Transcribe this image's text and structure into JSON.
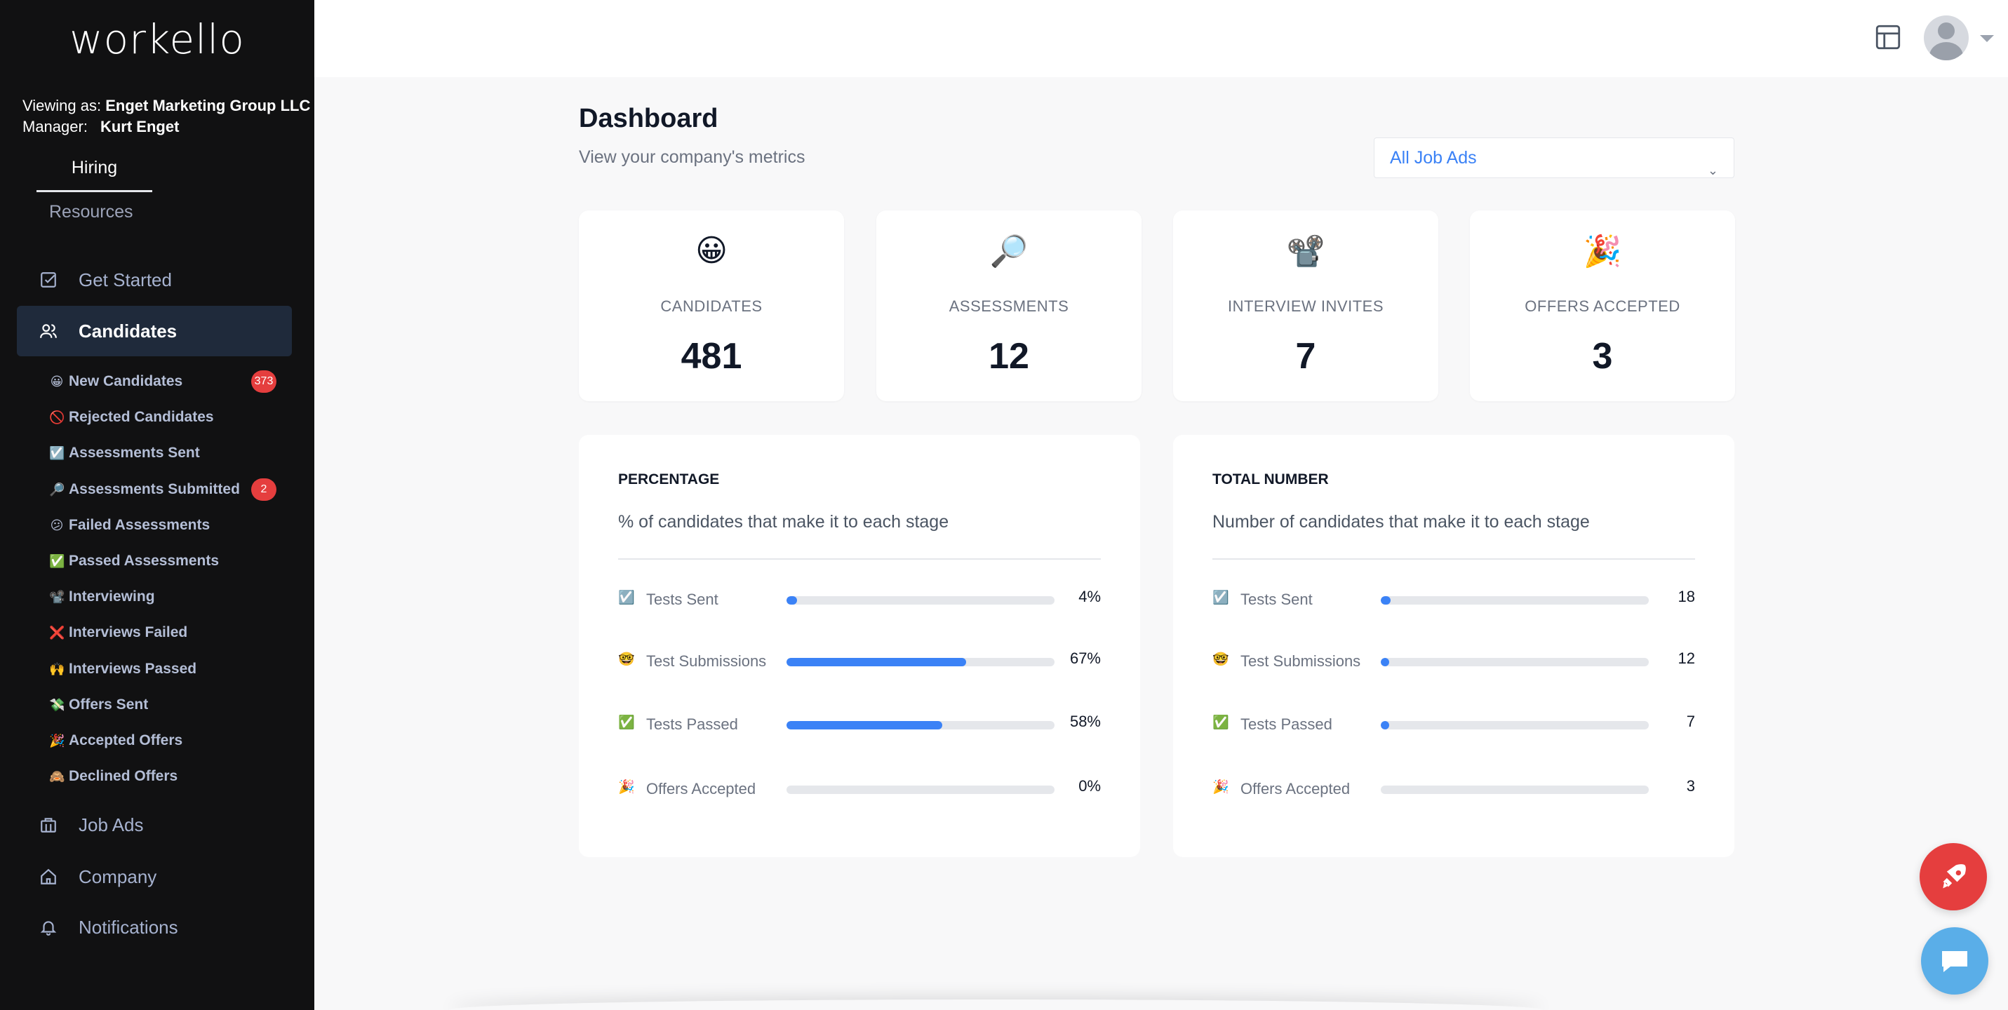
{
  "app": {
    "logo": "workello"
  },
  "account": {
    "viewing_label": "Viewing as:",
    "viewing_value": "Enget Marketing Group LLC",
    "manager_label": "Manager:",
    "manager_value": "Kurt Enget"
  },
  "tabs": {
    "hiring": "Hiring",
    "resources": "Resources"
  },
  "nav": {
    "get_started": "Get Started",
    "candidates": "Candidates",
    "job_ads": "Job Ads",
    "company": "Company",
    "notifications": "Notifications"
  },
  "candidate_lists": [
    {
      "emoji": "😀",
      "label": "New Candidates",
      "badge": "373"
    },
    {
      "emoji": "🚫",
      "label": "Rejected Candidates"
    },
    {
      "emoji": "☑️",
      "label": "Assessments Sent"
    },
    {
      "emoji": "🔎",
      "label": "Assessments Submitted",
      "badge": "2"
    },
    {
      "emoji": "😕",
      "label": "Failed Assessments"
    },
    {
      "emoji": "✅",
      "label": "Passed Assessments"
    },
    {
      "emoji": "📽️",
      "label": "Interviewing"
    },
    {
      "emoji": "❌",
      "label": "Interviews Failed"
    },
    {
      "emoji": "🙌",
      "label": "Interviews Passed"
    },
    {
      "emoji": "💸",
      "label": "Offers Sent"
    },
    {
      "emoji": "🎉",
      "label": "Accepted Offers"
    },
    {
      "emoji": "🙈",
      "label": "Declined Offers"
    }
  ],
  "main": {
    "title": "Dashboard",
    "subtitle": "View your company's metrics",
    "job_filter": "All Job Ads"
  },
  "metrics": [
    {
      "emoji": "😀",
      "label": "CANDIDATES",
      "value": "481"
    },
    {
      "emoji": "🔎",
      "label": "ASSESSMENTS",
      "value": "12"
    },
    {
      "emoji": "📽️",
      "label": "INTERVIEW INVITES",
      "value": "7"
    },
    {
      "emoji": "🎉",
      "label": "OFFERS ACCEPTED",
      "value": "3"
    }
  ],
  "percentage_panel": {
    "title": "PERCENTAGE",
    "description": "% of candidates that make it to each stage",
    "rows": [
      {
        "emoji": "☑️",
        "label": "Tests Sent",
        "value": "4%",
        "fraction": 0.04
      },
      {
        "emoji": "🤓",
        "label": "Test Submissions",
        "value": "67%",
        "fraction": 0.67
      },
      {
        "emoji": "✅",
        "label": "Tests Passed",
        "value": "58%",
        "fraction": 0.58
      },
      {
        "emoji": "🎉",
        "label": "Offers Accepted",
        "value": "0%",
        "fraction": 0.0
      }
    ]
  },
  "total_panel": {
    "title": "TOTAL NUMBER",
    "description": "Number of candidates that make it to each stage",
    "rows": [
      {
        "emoji": "☑️",
        "label": "Tests Sent",
        "value": "18",
        "fraction": 0.037
      },
      {
        "emoji": "🤓",
        "label": "Test Submissions",
        "value": "12",
        "fraction": 0.025
      },
      {
        "emoji": "✅",
        "label": "Tests Passed",
        "value": "7",
        "fraction": 0.015
      },
      {
        "emoji": "🎉",
        "label": "Offers Accepted",
        "value": "3",
        "fraction": 0.0
      }
    ]
  },
  "colors": {
    "accent": "#3b82f6",
    "badge": "#e53e3e",
    "sidebar": "#111112",
    "chat": "#5aaee8"
  },
  "icons": {
    "layout": "layout-icon",
    "avatar": "user-avatar",
    "rocket": "rocket-icon",
    "chat": "chat-icon"
  }
}
